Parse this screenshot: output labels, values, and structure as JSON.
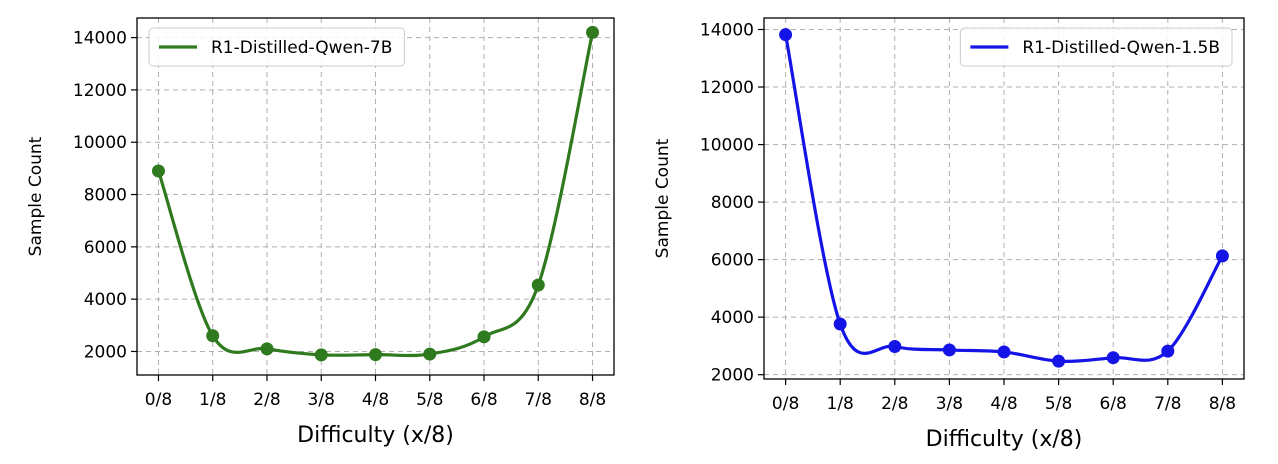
{
  "chart_data": [
    {
      "type": "line",
      "x": [
        "0/8",
        "1/8",
        "2/8",
        "3/8",
        "4/8",
        "5/8",
        "6/8",
        "7/8",
        "8/8"
      ],
      "series": [
        {
          "name": "R1-Distilled-Qwen-7B",
          "color": "#2f7a1f",
          "values": [
            8900,
            2600,
            2100,
            1870,
            1880,
            1900,
            2560,
            4540,
            14200
          ]
        }
      ],
      "xlabel": "Difficulty (x/8)",
      "ylabel": "Sample Count",
      "yticks": [
        2000,
        4000,
        6000,
        8000,
        10000,
        12000,
        14000
      ],
      "ytick_labels": [
        "2000",
        "4000",
        "6000",
        "8000",
        "10000",
        "12000",
        "14000"
      ],
      "ylim": [
        1100,
        14750
      ],
      "grid": true,
      "legend_position": "upper-left"
    },
    {
      "type": "line",
      "x": [
        "0/8",
        "1/8",
        "2/8",
        "3/8",
        "4/8",
        "5/8",
        "6/8",
        "7/8",
        "8/8"
      ],
      "series": [
        {
          "name": "R1-Distilled-Qwen-1.5B",
          "color": "#1414e6",
          "values": [
            13820,
            3760,
            2980,
            2860,
            2790,
            2470,
            2590,
            2820,
            6130
          ]
        }
      ],
      "xlabel": "Difficulty (x/8)",
      "ylabel": "Sample Count",
      "yticks": [
        2000,
        4000,
        6000,
        8000,
        10000,
        12000,
        14000
      ],
      "ytick_labels": [
        "2000",
        "4000",
        "6000",
        "8000",
        "10000",
        "12000",
        "14000"
      ],
      "ylim": [
        1850,
        14400
      ],
      "grid": true,
      "legend_position": "upper-right"
    }
  ]
}
